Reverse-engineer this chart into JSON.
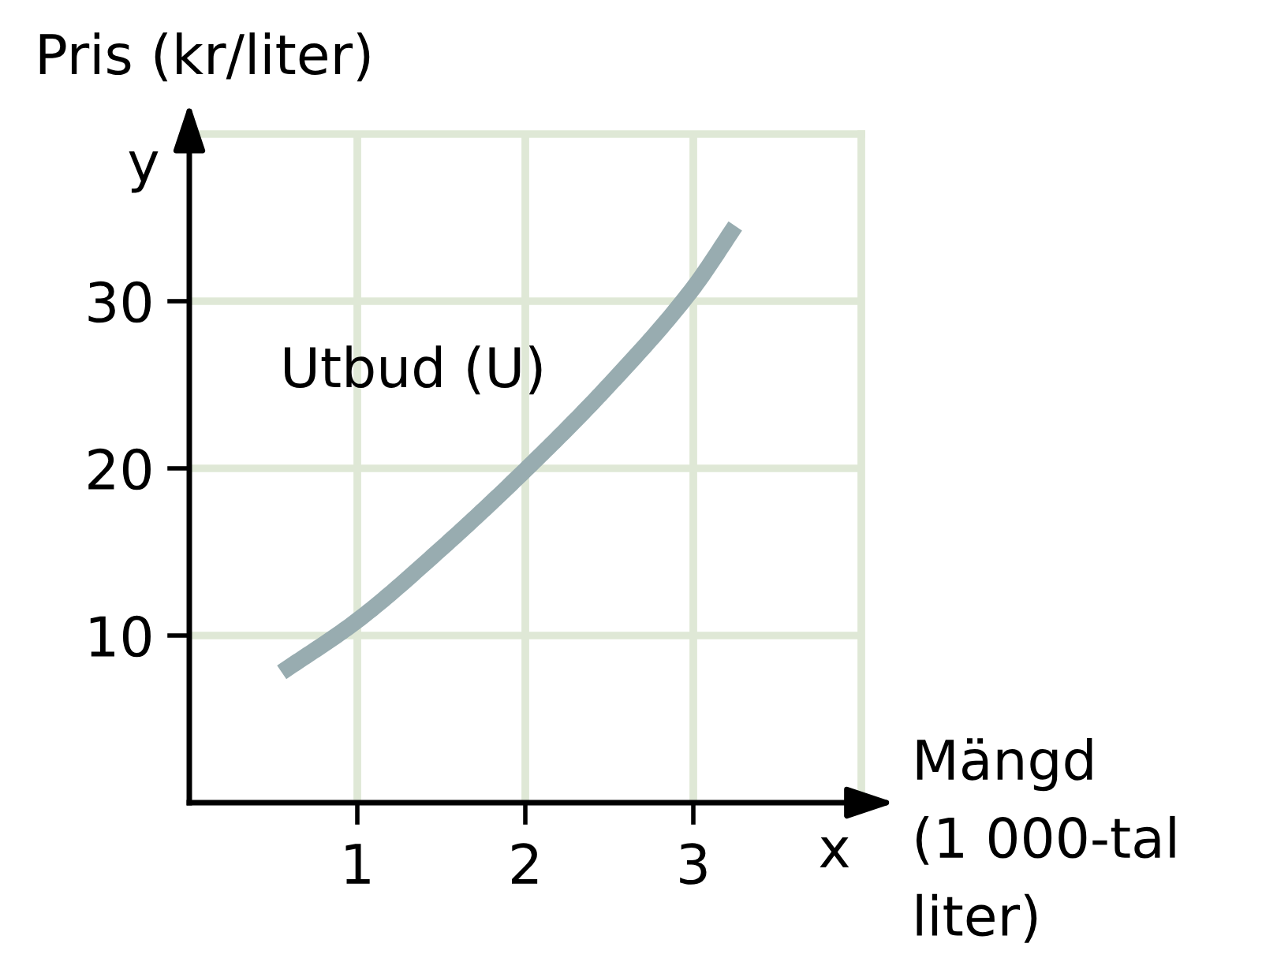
{
  "chart_data": {
    "type": "line",
    "xlabel": "Mängd\n(1 000-tal\nliter)",
    "ylabel": "Pris (kr/liter)",
    "annotations": [
      "y",
      "x"
    ],
    "x": [
      0.55,
      1,
      1.5,
      2,
      2.5,
      3,
      3.25
    ],
    "series": [
      {
        "name": "Utbud (U)",
        "color": "#98acb0",
        "values": [
          7.8,
          10.9,
          15.2,
          19.9,
          25.0,
          30.8,
          34.5
        ]
      }
    ],
    "xlim": [
      0,
      4
    ],
    "ylim": [
      0,
      40
    ],
    "xticks": [
      1,
      2,
      3
    ],
    "yticks": [
      10,
      20,
      30
    ],
    "grid": true,
    "legend": false,
    "line_style": "solid"
  }
}
